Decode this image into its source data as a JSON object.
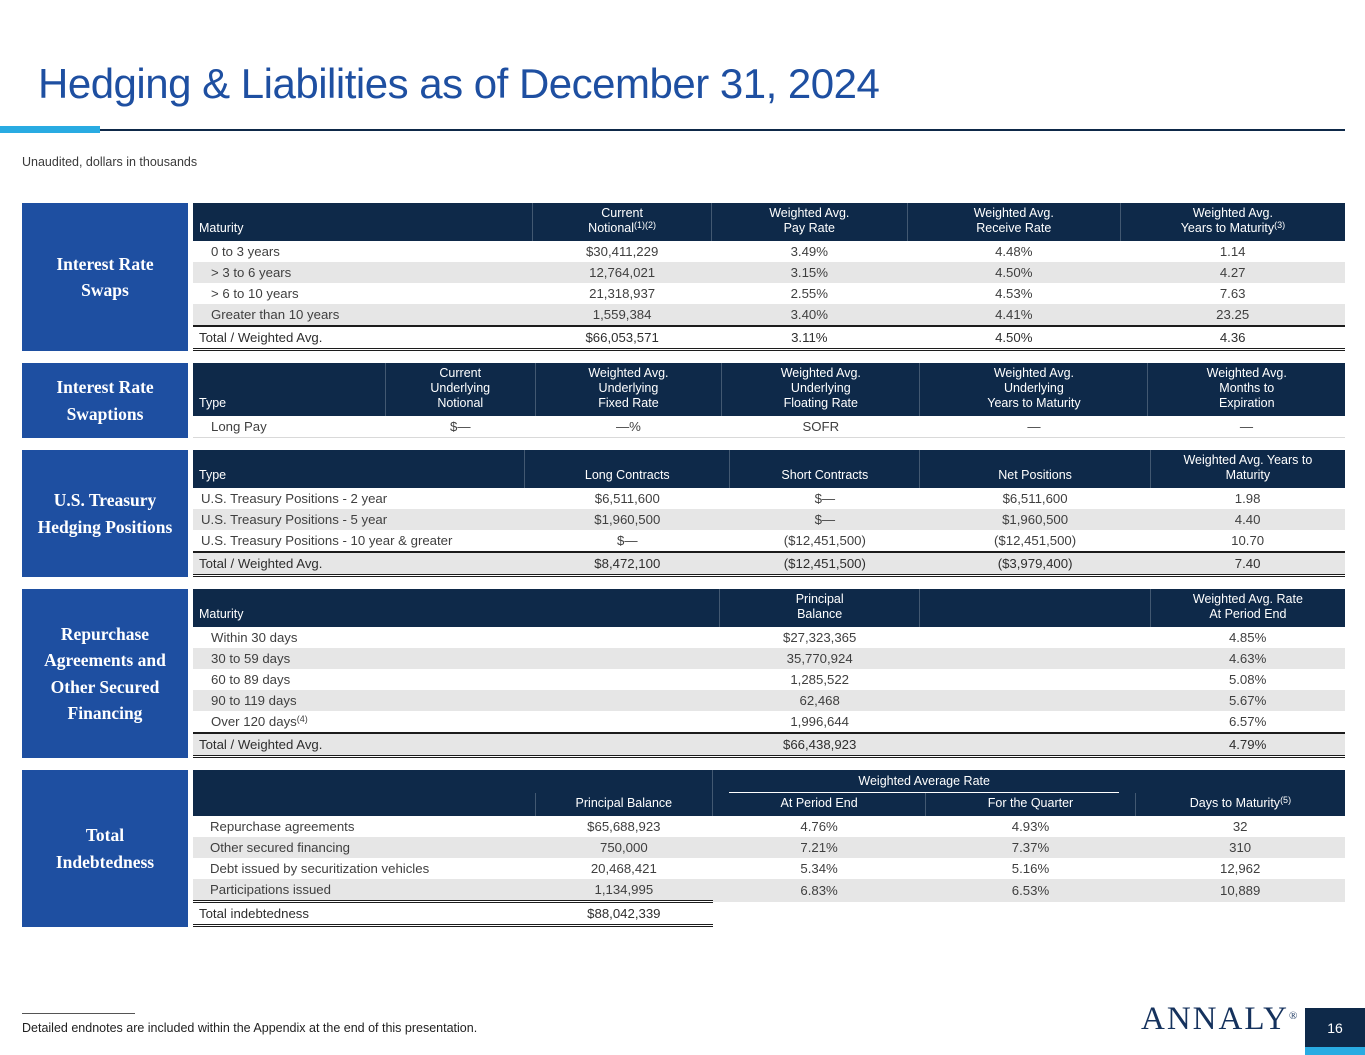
{
  "slide": {
    "title": "Hedging & Liabilities as of December 31, 2024",
    "subtitle": "Unaudited, dollars in thousands",
    "footnote": "Detailed endnotes are included within the Appendix at the end of this presentation.",
    "logo_text": "ANNALY",
    "logo_registered": "®",
    "page_number": "16"
  },
  "colors": {
    "header_navy": "#0e2949",
    "sidebar_blue": "#1e4fa1",
    "accent_cyan": "#29abe2",
    "stripe_gray": "#e6e6e6"
  },
  "tables": [
    {
      "id": "interest-rate-swaps",
      "side_label": "Interest Rate\nSwaps",
      "headers": [
        {
          "lines": [
            "Maturity"
          ]
        },
        {
          "lines": [
            "Current",
            "Notional"
          ],
          "sup": "(1)(2)"
        },
        {
          "lines": [
            "Weighted Avg.",
            "Pay Rate"
          ]
        },
        {
          "lines": [
            "Weighted Avg.",
            "Receive Rate"
          ]
        },
        {
          "lines": [
            "Weighted Avg.",
            "Years to Maturity"
          ],
          "sup": "(3)"
        }
      ],
      "rows": [
        [
          "0 to 3 years",
          "$30,411,229",
          "3.49%",
          "4.48%",
          "1.14"
        ],
        [
          "> 3 to 6 years",
          "12,764,021",
          "3.15%",
          "4.50%",
          "4.27"
        ],
        [
          "> 6 to 10 years",
          "21,318,937",
          "2.55%",
          "4.53%",
          "7.63"
        ],
        [
          "Greater than 10 years",
          "1,559,384",
          "3.40%",
          "4.41%",
          "23.25"
        ]
      ],
      "total": [
        "Total / Weighted Avg.",
        "$66,053,571",
        "3.11%",
        "4.50%",
        "4.36"
      ]
    },
    {
      "id": "interest-rate-swaptions",
      "side_label": "Interest Rate\nSwaptions",
      "headers": [
        {
          "lines": [
            "Type"
          ]
        },
        {
          "lines": [
            "Current",
            "Underlying",
            "Notional"
          ]
        },
        {
          "lines": [
            "Weighted Avg.",
            "Underlying",
            "Fixed Rate"
          ]
        },
        {
          "lines": [
            "Weighted Avg.",
            "Underlying",
            "Floating Rate"
          ]
        },
        {
          "lines": [
            "Weighted Avg.",
            "Underlying",
            "Years to Maturity"
          ]
        },
        {
          "lines": [
            "Weighted Avg.",
            "Months to",
            "Expiration"
          ]
        }
      ],
      "rows": [
        [
          "Long Pay",
          "$—",
          "—%",
          "SOFR",
          "—",
          "—"
        ]
      ]
    },
    {
      "id": "us-treasury-hedging-positions",
      "side_label": "U.S. Treasury\nHedging Positions",
      "headers": [
        {
          "lines": [
            "Type"
          ]
        },
        {
          "lines": [
            "Long Contracts"
          ]
        },
        {
          "lines": [
            "Short Contracts"
          ]
        },
        {
          "lines": [
            "Net Positions"
          ]
        },
        {
          "lines": [
            "Weighted Avg. Years to",
            "Maturity"
          ]
        }
      ],
      "rows": [
        [
          "U.S. Treasury Positions - 2 year",
          "$6,511,600",
          "$—",
          "$6,511,600",
          "1.98"
        ],
        [
          "U.S. Treasury Positions - 5 year",
          "$1,960,500",
          "$—",
          "$1,960,500",
          "4.40"
        ],
        [
          "U.S. Treasury Positions - 10 year & greater",
          "$—",
          "($12,451,500)",
          "($12,451,500)",
          "10.70"
        ]
      ],
      "total": [
        "Total / Weighted Avg.",
        "$8,472,100",
        "($12,451,500)",
        "($3,979,400)",
        "7.40"
      ]
    },
    {
      "id": "repurchase-agreements",
      "side_label": "Repurchase\nAgreements and\nOther Secured\nFinancing",
      "headers": [
        {
          "lines": [
            "Maturity"
          ]
        },
        {
          "lines": [
            "Principal",
            "Balance"
          ]
        },
        {
          "lines": []
        },
        {
          "lines": [
            "Weighted Avg. Rate",
            "At Period End"
          ]
        }
      ],
      "rows": [
        [
          "Within 30 days",
          "$27,323,365",
          "",
          "4.85%"
        ],
        [
          "30 to 59 days",
          "35,770,924",
          "",
          "4.63%"
        ],
        [
          "60 to 89 days",
          "1,285,522",
          "",
          "5.08%"
        ],
        [
          "90 to 119 days",
          "62,468",
          "",
          "5.67%"
        ],
        [
          {
            "text": "Over 120 days",
            "sup": "(4)"
          },
          "1,996,644",
          "",
          "6.57%"
        ]
      ],
      "total": [
        "Total / Weighted Avg.",
        "$66,438,923",
        "",
        "4.79%"
      ]
    },
    {
      "id": "total-indebtedness",
      "side_label": "Total\nIndebtedness",
      "group_header": "Weighted Average Rate",
      "headers": [
        {
          "lines": []
        },
        {
          "lines": [
            "Principal Balance"
          ]
        },
        {
          "lines": [
            "At Period End"
          ]
        },
        {
          "lines": [
            "For the Quarter"
          ]
        },
        {
          "lines": [
            "Days to Maturity"
          ],
          "sup": "(5)"
        }
      ],
      "rows": [
        [
          "Repurchase agreements",
          "$65,688,923",
          "4.76%",
          "4.93%",
          "32"
        ],
        [
          "Other secured financing",
          "750,000",
          "7.21%",
          "7.37%",
          "310"
        ],
        [
          "Debt issued by securitization vehicles",
          "20,468,421",
          "5.34%",
          "5.16%",
          "12,962"
        ],
        [
          "Participations issued",
          "1,134,995",
          "6.83%",
          "6.53%",
          "10,889"
        ]
      ],
      "total": [
        "Total indebtedness",
        "$88,042,339",
        "",
        "",
        ""
      ]
    }
  ]
}
